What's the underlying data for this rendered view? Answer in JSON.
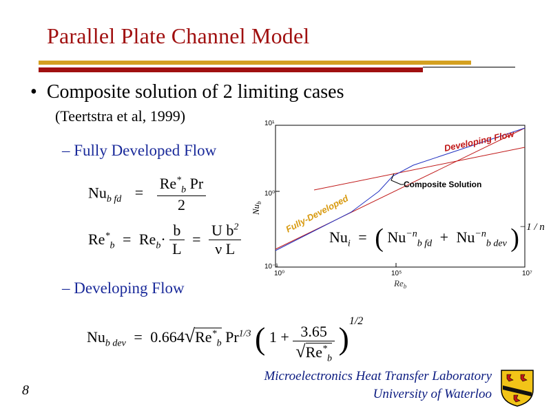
{
  "slide": {
    "title": "Parallel Plate Channel Model",
    "bullet": "Composite solution of 2 limiting cases",
    "citation": "(Teertstra et al, 1999)",
    "dash": "–",
    "sub1": "Fully Developed Flow",
    "sub2": "Developing Flow",
    "page_number": "8",
    "footer_lab": "Microelectronics Heat Transfer Laboratory",
    "footer_univ": "University of Waterloo"
  },
  "equations": {
    "nu_fd_left": "Nu",
    "nu_fd_sub": "b fd",
    "eq": "=",
    "nu_fd_num": "Re",
    "nu_fd_num_sup": "*",
    "nu_fd_num_sub": "b",
    "nu_fd_num_pr": " Pr",
    "nu_fd_den": "2",
    "re_star_left": "Re",
    "re_star_sup": "*",
    "re_star_sub": "b",
    "re_star_mid": "Re",
    "re_star_mid_sub": "b",
    "dot": "·",
    "frac1_num": "b",
    "frac1_den": "L",
    "frac2_num": "U b",
    "frac2_num_sup": "2",
    "frac2_den": "ν L",
    "nu_i_left": "Nu",
    "nu_i_sub": "i",
    "nu_i_t1": "Nu",
    "nu_i_t1_sub": "b fd",
    "nu_i_t1_sup": "−n",
    "plus": "+",
    "nu_i_t2": "Nu",
    "nu_i_t2_sub": "b dev",
    "nu_i_t2_sup": "−n",
    "nu_i_exp": "−1 / n",
    "nu_dev_left": "Nu",
    "nu_dev_sub": "b dev",
    "nu_dev_coef": "0.664",
    "nu_dev_re": "Re",
    "nu_dev_re_sup": "*",
    "nu_dev_re_sub": "b",
    "nu_dev_pr": "Pr",
    "nu_dev_pr_sup": "1/3",
    "nu_dev_one": "1 +",
    "nu_dev_frac_num": "3.65",
    "nu_dev_frac_den": "Re",
    "nu_dev_frac_den_sup": "*",
    "nu_dev_frac_den_sub": "b",
    "nu_dev_exp": "1/2"
  },
  "plot": {
    "y_axis_label": "Nu",
    "y_axis_label_sub": "b",
    "x_axis_label": "Re",
    "x_axis_label_sub": "b",
    "y_ticks": [
      "10¹",
      "10⁰",
      "10⁻¹"
    ],
    "x_ticks": [
      "10⁰",
      "10⁵",
      "10⁷"
    ],
    "label_fully_developed": "Fully-Developed",
    "label_developing": "Developing Flow",
    "label_composite": "Composite Solution",
    "color_fully_developed": "#c01818",
    "color_developing": "#c01818",
    "color_composite": "#2030c0"
  },
  "colors": {
    "title": "#a01010",
    "rule_gold": "#d4a020",
    "rule_red": "#a01010",
    "subheading": "#1a2a9a",
    "footer": "#0a1a80"
  }
}
